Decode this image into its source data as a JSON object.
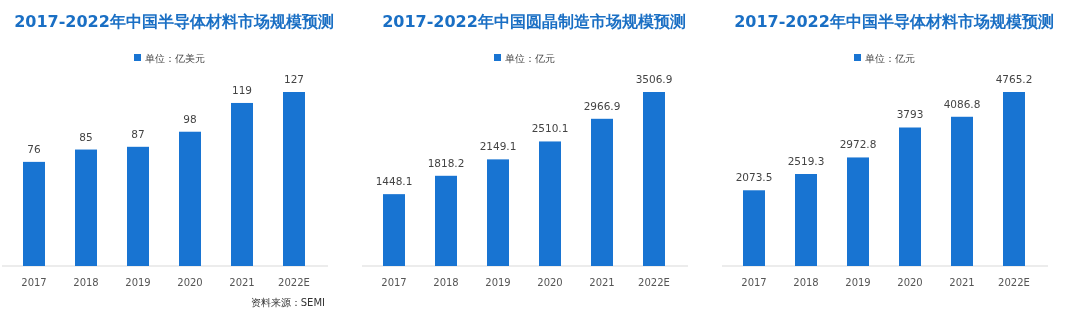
{
  "chart_data": [
    {
      "type": "bar",
      "title": "2017-2022年中国半导体材料市场规模预测",
      "categories": [
        "2017",
        "2018",
        "2019",
        "2020",
        "2021",
        "2022E"
      ],
      "series": [
        {
          "name": "单位：亿美元",
          "color": "#1874d2",
          "values": [
            76,
            85,
            87,
            98,
            119,
            127
          ]
        }
      ],
      "data_labels": true,
      "legend": "top",
      "annotations": [
        "资料来源：SEMI"
      ]
    },
    {
      "type": "bar",
      "title": "2017-2022年中国圆晶制造市场规模预测",
      "categories": [
        "2017",
        "2018",
        "2019",
        "2020",
        "2021",
        "2022E"
      ],
      "series": [
        {
          "name": "单位：亿元",
          "color": "#1874d2",
          "values": [
            1448.1,
            1818.2,
            2149.1,
            2510.1,
            2966.9,
            3506.9
          ]
        }
      ],
      "data_labels": true,
      "legend": "top"
    },
    {
      "type": "bar",
      "title": "2017-2022年中国半导体材料市场规模预测",
      "categories": [
        "2017",
        "2018",
        "2019",
        "2020",
        "2021",
        "2022E"
      ],
      "series": [
        {
          "name": "单位：亿元",
          "color": "#1874d2",
          "values": [
            2073.5,
            2519.3,
            2972.8,
            3793,
            4086.8,
            4765.2
          ]
        }
      ],
      "data_labels": true,
      "legend": "top"
    }
  ]
}
